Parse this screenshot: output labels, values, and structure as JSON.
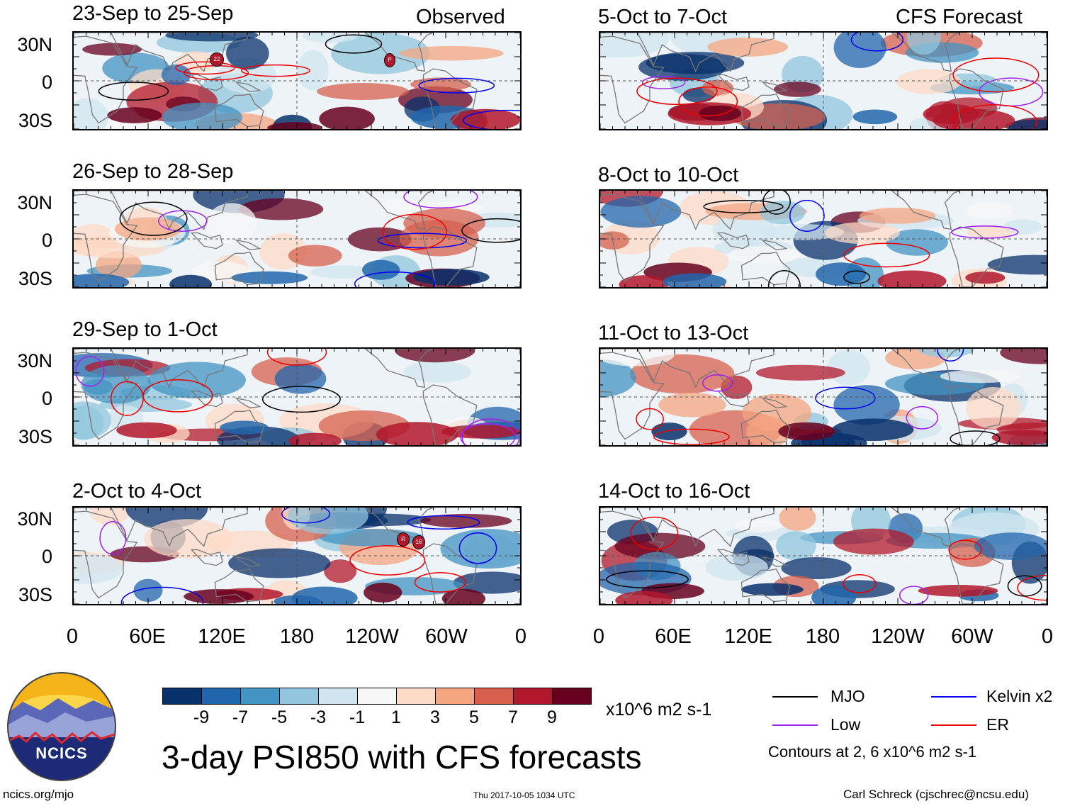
{
  "figure": {
    "title": "3-day PSI850 with CFS forecasts",
    "organization": "NCICS",
    "url": "ncics.org/mjo",
    "timestamp": "Thu 2017-10-05 1034 UTC",
    "credit": "Carl Schreck (cjschrec@ncsu.edu)"
  },
  "columns": {
    "left_label": "Observed",
    "right_label": "CFS Forecast"
  },
  "panels": {
    "left": [
      "23-Sep to 25-Sep",
      "26-Sep to 28-Sep",
      "29-Sep to 1-Oct",
      "2-Oct to 4-Oct"
    ],
    "right": [
      "5-Oct to 7-Oct",
      "8-Oct to 10-Oct",
      "11-Oct to 13-Oct",
      "14-Oct to 16-Oct"
    ]
  },
  "axes": {
    "lat_labels": [
      "30N",
      "0",
      "30S"
    ],
    "lon_labels": [
      "0",
      "60E",
      "120E",
      "180",
      "120W",
      "60W",
      "0"
    ]
  },
  "colorbar": {
    "unit": "x10^6 m2 s-1",
    "labels": [
      "-9",
      "-7",
      "-5",
      "-3",
      "-1",
      "1",
      "3",
      "5",
      "7",
      "9"
    ],
    "colors": [
      "#08306b",
      "#2166ac",
      "#4393c3",
      "#92c5de",
      "#d1e5f0",
      "#f7f7f7",
      "#fddbc7",
      "#f4a582",
      "#d6604d",
      "#b2182b",
      "#67001f"
    ]
  },
  "legend": {
    "items": [
      {
        "label": "MJO",
        "color": "#000000"
      },
      {
        "label": "Kelvin x2",
        "color": "#0000ee"
      },
      {
        "label": "Low",
        "color": "#a020f0"
      },
      {
        "label": "ER",
        "color": "#ee0000"
      }
    ],
    "note": "Contours at 2, 6 x10^6 m2 s-1"
  },
  "storm_markers": {
    "panel1": [
      "22",
      "P"
    ],
    "panel4": [
      "R",
      "16"
    ]
  }
}
